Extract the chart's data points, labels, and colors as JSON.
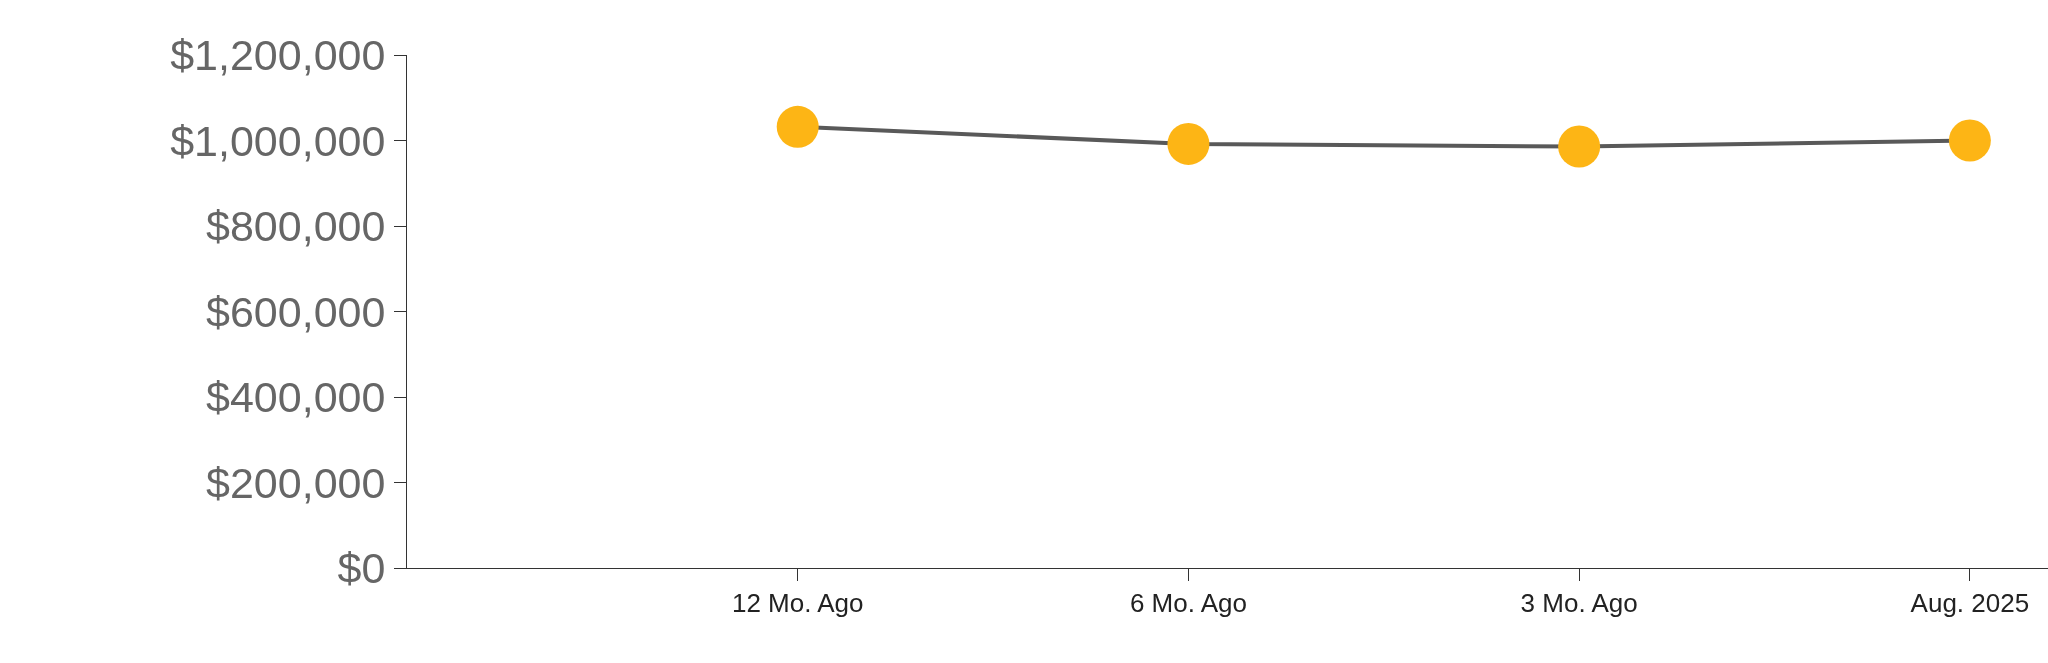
{
  "chart_data": {
    "type": "line",
    "categories": [
      null,
      "12 Mo. Ago",
      "6 Mo. Ago",
      "3 Mo. Ago",
      "Aug. 2025"
    ],
    "series": [
      {
        "color": "#595959",
        "colors": [
          "#fdb515",
          "#fdb515",
          "#fdb515",
          "#fdb515",
          "#fdb515"
        ],
        "values": [
          null,
          1032000,
          992000,
          986000,
          1000000
        ]
      }
    ],
    "marker": "circle",
    "line_style": "solid",
    "ylim": [
      0,
      1200000
    ],
    "yticks": [
      {
        "value": 0,
        "label": "$0"
      },
      {
        "value": 200000,
        "label": "$200,000"
      },
      {
        "value": 400000,
        "label": "$400,000"
      },
      {
        "value": 600000,
        "label": "$600,000"
      },
      {
        "value": 800000,
        "label": "$800,000"
      },
      {
        "value": 1000000,
        "label": "$1,000,000"
      },
      {
        "value": 1200000,
        "label": "$1,200,000"
      }
    ],
    "legend": false
  }
}
